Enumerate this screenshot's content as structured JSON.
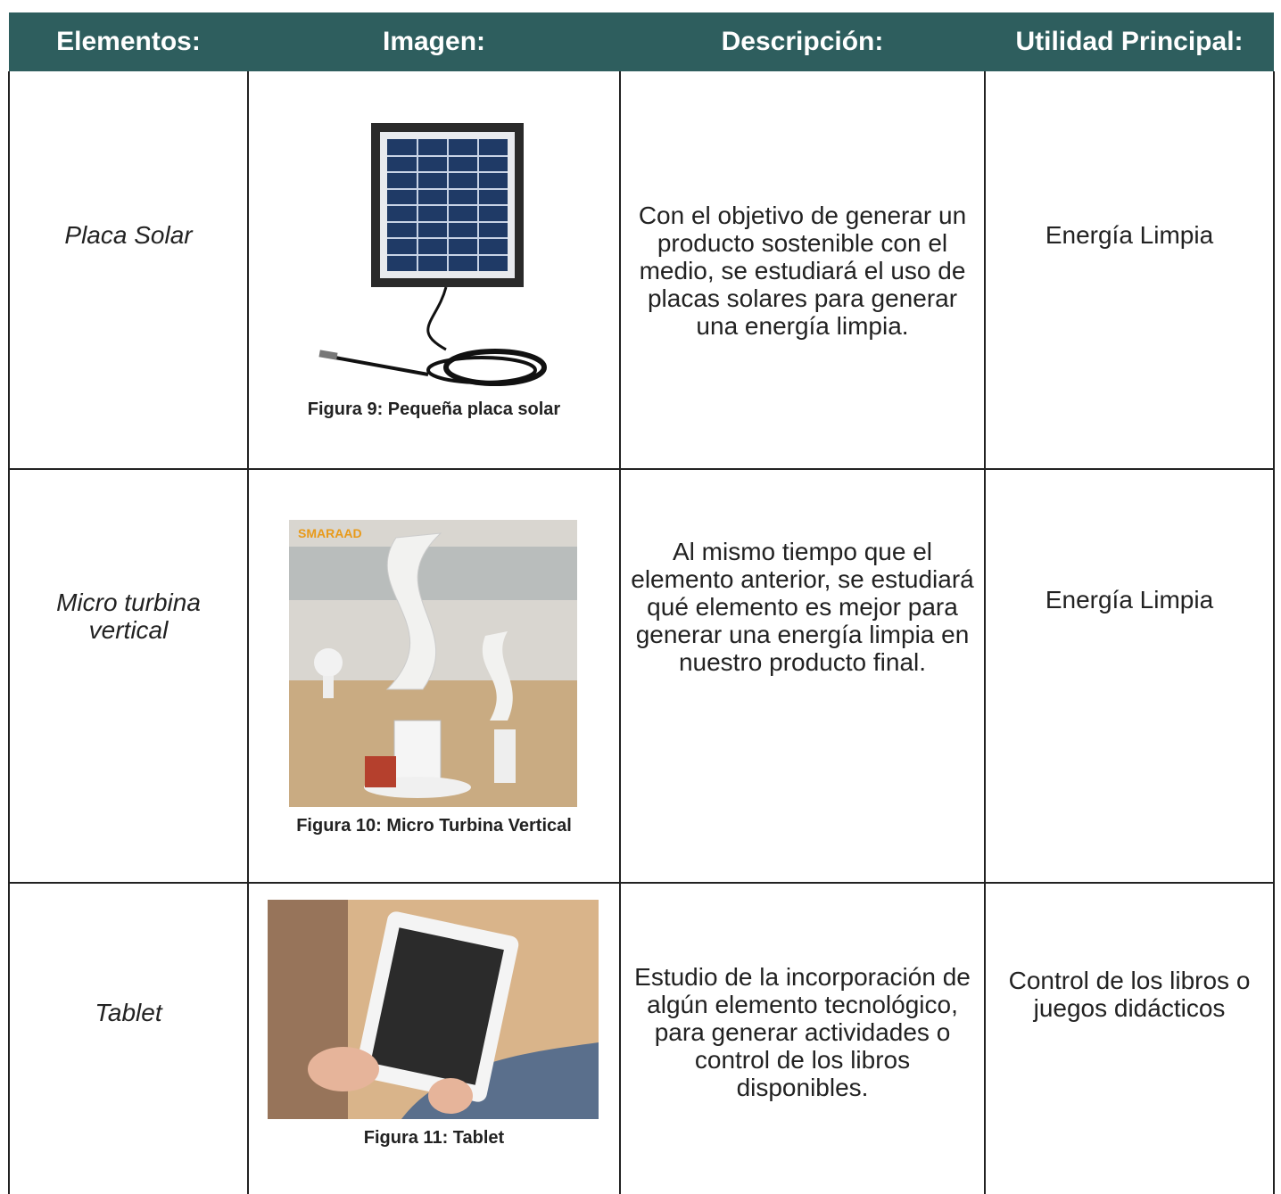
{
  "header": {
    "columns": [
      "Elementos:",
      "Imagen:",
      "Descripción:",
      "Utilidad Principal:"
    ]
  },
  "rows": [
    {
      "element": "Placa Solar",
      "caption": "Figura 9: Pequeña placa solar",
      "description": "Con el objetivo de generar un producto sostenible con el medio, se estudiará el uso de placas solares para generar una energía limpia.",
      "utility": "Energía Limpia"
    },
    {
      "element": "Micro turbina vertical",
      "caption": "Figura 10: Micro Turbina Vertical",
      "description": "Al mismo tiempo que el elemento anterior, se estudiará qué elemento es mejor para generar una energía limpia en nuestro producto final.",
      "utility": "Energía Limpia"
    },
    {
      "element": "Tablet",
      "caption": "Figura 11: Tablet",
      "description": "Estudio de la incorporación de algún elemento tecnológico, para generar actividades o control de los libros disponibles.",
      "utility": "Control de los libros o juegos didácticos"
    }
  ]
}
